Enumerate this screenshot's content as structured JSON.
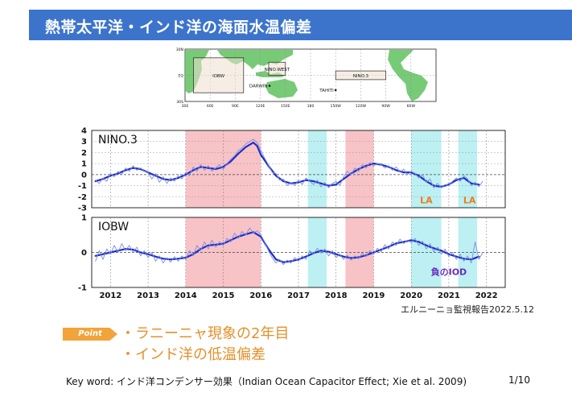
{
  "slide": {
    "title": "熱帯太平洋・インド洋の海面水温偏差",
    "report_credit": "エルニーニョ監視報告2022.5.12",
    "point_badge": "Point",
    "points": [
      "・ラニーニャ現象の2年目",
      "・インド洋の低温偏差"
    ],
    "footer_keyword": "Key word: インド洋コンデンサー効果（Indian Ocean Capacitor Effect; Xie et al. 2009)",
    "page_number": "1/10",
    "colors": {
      "title_bar": "#3c74cc",
      "el_nino_band": "#f7c3c6",
      "la_nina_band": "#bdf0f2",
      "running_mean": "#1c2fc9",
      "monthly": "#7f8bdf",
      "la_label": "#f07a1a",
      "iod_label": "#6a2cc0",
      "accent": "#f2a43a"
    }
  },
  "map": {
    "lat_labels": [
      "30N",
      "EQ",
      "30S"
    ],
    "lon_labels": [
      "30E",
      "60E",
      "90E",
      "120E",
      "150E",
      "180",
      "150W",
      "120W",
      "90W",
      "60W"
    ],
    "regions": [
      {
        "label": "IOBW",
        "lon_min": 40,
        "lon_max": 100,
        "lat_min": -20,
        "lat_max": 20
      },
      {
        "label": "NINO.WEST",
        "lon_min": 130,
        "lon_max": 150,
        "lat_min": 0,
        "lat_max": 15
      },
      {
        "label": "NINO.3",
        "lon_min": 210,
        "lon_max": 270,
        "lat_min": -5,
        "lat_max": 5
      }
    ],
    "stations": [
      {
        "label": "DARWIN",
        "lon": 131,
        "lat": -12
      },
      {
        "label": "TAHITI",
        "lon": 210,
        "lat": -17
      }
    ]
  },
  "chart_data": {
    "type": "line",
    "x_start": 2011.5,
    "x_end": 2022.5,
    "xtick_labels": [
      "2012",
      "2013",
      "2014",
      "2015",
      "2016",
      "2017",
      "2018",
      "2019",
      "2020",
      "2021",
      "2022"
    ],
    "el_nino_periods": [
      [
        2014.0,
        2016.0
      ],
      [
        2018.25,
        2019.0
      ]
    ],
    "la_nina_periods": [
      [
        2017.25,
        2017.75
      ],
      [
        2020.0,
        2020.8
      ],
      [
        2021.25,
        2021.75
      ]
    ],
    "panels": [
      {
        "name": "NINO.3",
        "ylim": [
          -3,
          4
        ],
        "ytick_labels": [
          "4",
          "3",
          "2",
          "1",
          "0",
          "-1",
          "-2",
          "-3"
        ],
        "annotations": [
          {
            "text": "LA",
            "x": 2020.4,
            "y": -2.3
          },
          {
            "text": "LA",
            "x": 2021.55,
            "y": -2.3
          }
        ],
        "series": [
          {
            "kind": "running_mean",
            "x": [
              2011.6,
              2011.8,
              2012.0,
              2012.2,
              2012.4,
              2012.6,
              2012.8,
              2013.0,
              2013.2,
              2013.4,
              2013.6,
              2013.8,
              2014.0,
              2014.2,
              2014.4,
              2014.6,
              2014.8,
              2015.0,
              2015.2,
              2015.4,
              2015.6,
              2015.8,
              2015.9,
              2016.0,
              2016.2,
              2016.4,
              2016.6,
              2016.8,
              2017.0,
              2017.2,
              2017.4,
              2017.6,
              2017.8,
              2018.0,
              2018.2,
              2018.4,
              2018.6,
              2018.8,
              2019.0,
              2019.2,
              2019.4,
              2019.6,
              2019.8,
              2020.0,
              2020.2,
              2020.4,
              2020.6,
              2020.8,
              2021.0,
              2021.2,
              2021.4,
              2021.6,
              2021.8
            ],
            "y": [
              -0.6,
              -0.4,
              -0.1,
              0.1,
              0.4,
              0.6,
              0.5,
              0.2,
              -0.1,
              -0.4,
              -0.5,
              -0.3,
              0.0,
              0.4,
              0.7,
              0.6,
              0.5,
              0.7,
              1.2,
              1.9,
              2.5,
              2.9,
              2.6,
              1.8,
              0.8,
              -0.1,
              -0.6,
              -0.8,
              -0.7,
              -0.5,
              -0.6,
              -0.8,
              -1.0,
              -0.9,
              -0.4,
              0.1,
              0.5,
              0.8,
              1.0,
              0.9,
              0.7,
              0.4,
              0.2,
              0.2,
              -0.1,
              -0.6,
              -1.0,
              -1.1,
              -0.9,
              -0.5,
              -0.3,
              -0.8,
              -0.9
            ]
          },
          {
            "kind": "monthly",
            "x": [
              2011.6,
              2011.7,
              2011.8,
              2011.9,
              2012.0,
              2012.1,
              2012.2,
              2012.3,
              2012.4,
              2012.5,
              2012.6,
              2012.7,
              2012.8,
              2012.9,
              2013.0,
              2013.1,
              2013.2,
              2013.3,
              2013.4,
              2013.5,
              2013.6,
              2013.7,
              2013.8,
              2013.9,
              2014.0,
              2014.1,
              2014.2,
              2014.3,
              2014.4,
              2014.5,
              2014.6,
              2014.7,
              2014.8,
              2014.9,
              2015.0,
              2015.1,
              2015.2,
              2015.3,
              2015.4,
              2015.5,
              2015.6,
              2015.7,
              2015.8,
              2015.9,
              2016.0,
              2016.1,
              2016.2,
              2016.3,
              2016.4,
              2016.5,
              2016.6,
              2016.7,
              2016.8,
              2016.9,
              2017.0,
              2017.1,
              2017.2,
              2017.3,
              2017.4,
              2017.5,
              2017.6,
              2017.7,
              2017.8,
              2017.9,
              2018.0,
              2018.1,
              2018.2,
              2018.3,
              2018.4,
              2018.5,
              2018.6,
              2018.7,
              2018.8,
              2018.9,
              2019.0,
              2019.1,
              2019.2,
              2019.3,
              2019.4,
              2019.5,
              2019.6,
              2019.7,
              2019.8,
              2019.9,
              2020.0,
              2020.1,
              2020.2,
              2020.3,
              2020.4,
              2020.5,
              2020.6,
              2020.7,
              2020.8,
              2020.9,
              2021.0,
              2021.1,
              2021.2,
              2021.3,
              2021.4,
              2021.5,
              2021.6,
              2021.7,
              2021.8,
              2021.9
            ],
            "y": [
              -0.5,
              -0.8,
              -0.3,
              -0.6,
              0.1,
              -0.2,
              0.3,
              0.0,
              0.6,
              0.3,
              0.8,
              0.4,
              0.6,
              0.3,
              0.2,
              -0.4,
              0.1,
              -0.7,
              -0.2,
              -0.8,
              -0.3,
              -0.6,
              -0.1,
              -0.4,
              0.2,
              -0.1,
              0.7,
              0.3,
              0.9,
              0.4,
              0.8,
              0.3,
              0.6,
              0.9,
              0.5,
              1.0,
              1.4,
              1.7,
              2.2,
              2.4,
              2.8,
              3.0,
              3.2,
              2.9,
              2.2,
              1.5,
              0.9,
              0.2,
              0.1,
              -0.5,
              -0.4,
              -1.0,
              -0.7,
              -1.0,
              -0.5,
              -0.9,
              -0.3,
              -0.6,
              -0.9,
              -0.5,
              -1.1,
              -0.7,
              -1.2,
              -0.8,
              -0.6,
              -1.0,
              -0.2,
              0.3,
              0.0,
              0.6,
              0.3,
              0.9,
              0.6,
              1.1,
              0.8,
              1.0,
              0.9,
              0.6,
              0.8,
              0.4,
              0.7,
              0.2,
              0.5,
              0.0,
              0.3,
              0.1,
              -0.3,
              0.0,
              -0.7,
              -0.4,
              -1.2,
              -0.8,
              -1.2,
              -0.9,
              -1.0,
              -0.6,
              -0.3,
              -0.6,
              -0.1,
              -0.4,
              -1.0,
              -0.7,
              -1.1,
              -0.6
            ]
          }
        ]
      },
      {
        "name": "IOBW",
        "ylim": [
          -1,
          1
        ],
        "ytick_labels": [
          "1",
          "0",
          "-1"
        ],
        "annotations": [
          {
            "text": "負のIOD",
            "x": 2021.0,
            "y": -0.55
          }
        ],
        "series": [
          {
            "kind": "running_mean",
            "x": [
              2011.6,
              2011.8,
              2012.0,
              2012.2,
              2012.4,
              2012.6,
              2012.8,
              2013.0,
              2013.2,
              2013.4,
              2013.6,
              2013.8,
              2014.0,
              2014.2,
              2014.4,
              2014.6,
              2014.8,
              2015.0,
              2015.2,
              2015.4,
              2015.6,
              2015.8,
              2016.0,
              2016.2,
              2016.4,
              2016.6,
              2016.8,
              2017.0,
              2017.2,
              2017.4,
              2017.6,
              2017.8,
              2018.0,
              2018.2,
              2018.4,
              2018.6,
              2018.8,
              2019.0,
              2019.2,
              2019.4,
              2019.6,
              2019.8,
              2020.0,
              2020.2,
              2020.4,
              2020.6,
              2020.8,
              2021.0,
              2021.2,
              2021.4,
              2021.6,
              2021.8
            ],
            "y": [
              -0.1,
              -0.05,
              0.0,
              0.05,
              0.1,
              0.08,
              0.0,
              -0.05,
              -0.12,
              -0.18,
              -0.2,
              -0.18,
              -0.15,
              -0.05,
              0.1,
              0.2,
              0.22,
              0.25,
              0.35,
              0.45,
              0.52,
              0.58,
              0.45,
              0.1,
              -0.2,
              -0.28,
              -0.25,
              -0.2,
              -0.12,
              -0.02,
              0.05,
              0.02,
              -0.05,
              -0.12,
              -0.16,
              -0.14,
              -0.08,
              0.0,
              0.08,
              0.16,
              0.26,
              0.3,
              0.35,
              0.3,
              0.2,
              0.12,
              0.05,
              -0.05,
              -0.12,
              -0.18,
              -0.2,
              -0.12
            ]
          },
          {
            "kind": "monthly",
            "x": [
              2011.6,
              2011.7,
              2011.8,
              2011.9,
              2012.0,
              2012.1,
              2012.2,
              2012.3,
              2012.4,
              2012.5,
              2012.6,
              2012.7,
              2012.8,
              2012.9,
              2013.0,
              2013.1,
              2013.2,
              2013.3,
              2013.4,
              2013.5,
              2013.6,
              2013.7,
              2013.8,
              2013.9,
              2014.0,
              2014.1,
              2014.2,
              2014.3,
              2014.4,
              2014.5,
              2014.6,
              2014.7,
              2014.8,
              2014.9,
              2015.0,
              2015.1,
              2015.2,
              2015.3,
              2015.4,
              2015.5,
              2015.6,
              2015.7,
              2015.8,
              2015.9,
              2016.0,
              2016.1,
              2016.2,
              2016.3,
              2016.4,
              2016.5,
              2016.6,
              2016.7,
              2016.8,
              2016.9,
              2017.0,
              2017.1,
              2017.2,
              2017.3,
              2017.4,
              2017.5,
              2017.6,
              2017.7,
              2017.8,
              2017.9,
              2018.0,
              2018.1,
              2018.2,
              2018.3,
              2018.4,
              2018.5,
              2018.6,
              2018.7,
              2018.8,
              2018.9,
              2019.0,
              2019.1,
              2019.2,
              2019.3,
              2019.4,
              2019.5,
              2019.6,
              2019.7,
              2019.8,
              2019.9,
              2020.0,
              2020.1,
              2020.2,
              2020.3,
              2020.4,
              2020.5,
              2020.6,
              2020.7,
              2020.8,
              2020.9,
              2021.0,
              2021.1,
              2021.2,
              2021.3,
              2021.4,
              2021.5,
              2021.6,
              2021.7,
              2021.8,
              2021.9
            ],
            "y": [
              -0.25,
              0.05,
              -0.2,
              0.1,
              -0.05,
              0.2,
              0.0,
              0.25,
              0.05,
              0.2,
              0.0,
              0.15,
              -0.1,
              0.05,
              -0.15,
              0.0,
              -0.25,
              -0.1,
              -0.3,
              -0.15,
              -0.28,
              -0.12,
              -0.25,
              -0.1,
              -0.2,
              0.05,
              -0.1,
              0.2,
              0.05,
              0.3,
              0.1,
              0.35,
              0.15,
              0.3,
              0.2,
              0.4,
              0.3,
              0.55,
              0.4,
              0.6,
              0.5,
              0.7,
              0.55,
              0.62,
              0.5,
              0.3,
              0.05,
              -0.15,
              -0.3,
              -0.2,
              -0.35,
              -0.22,
              -0.3,
              -0.15,
              -0.25,
              -0.1,
              -0.2,
              0.05,
              -0.05,
              0.12,
              -0.02,
              0.1,
              -0.1,
              0.05,
              -0.15,
              -0.05,
              -0.2,
              -0.08,
              -0.22,
              -0.1,
              -0.18,
              -0.02,
              -0.12,
              0.05,
              -0.05,
              0.12,
              0.02,
              0.22,
              0.1,
              0.3,
              0.2,
              0.38,
              0.25,
              0.35,
              0.28,
              0.4,
              0.2,
              0.32,
              0.1,
              0.25,
              0.02,
              0.15,
              -0.05,
              0.1,
              -0.12,
              0.0,
              -0.2,
              -0.05,
              -0.25,
              -0.1,
              -0.3,
              0.3,
              -0.2,
              0.0
            ]
          }
        ]
      }
    ]
  }
}
